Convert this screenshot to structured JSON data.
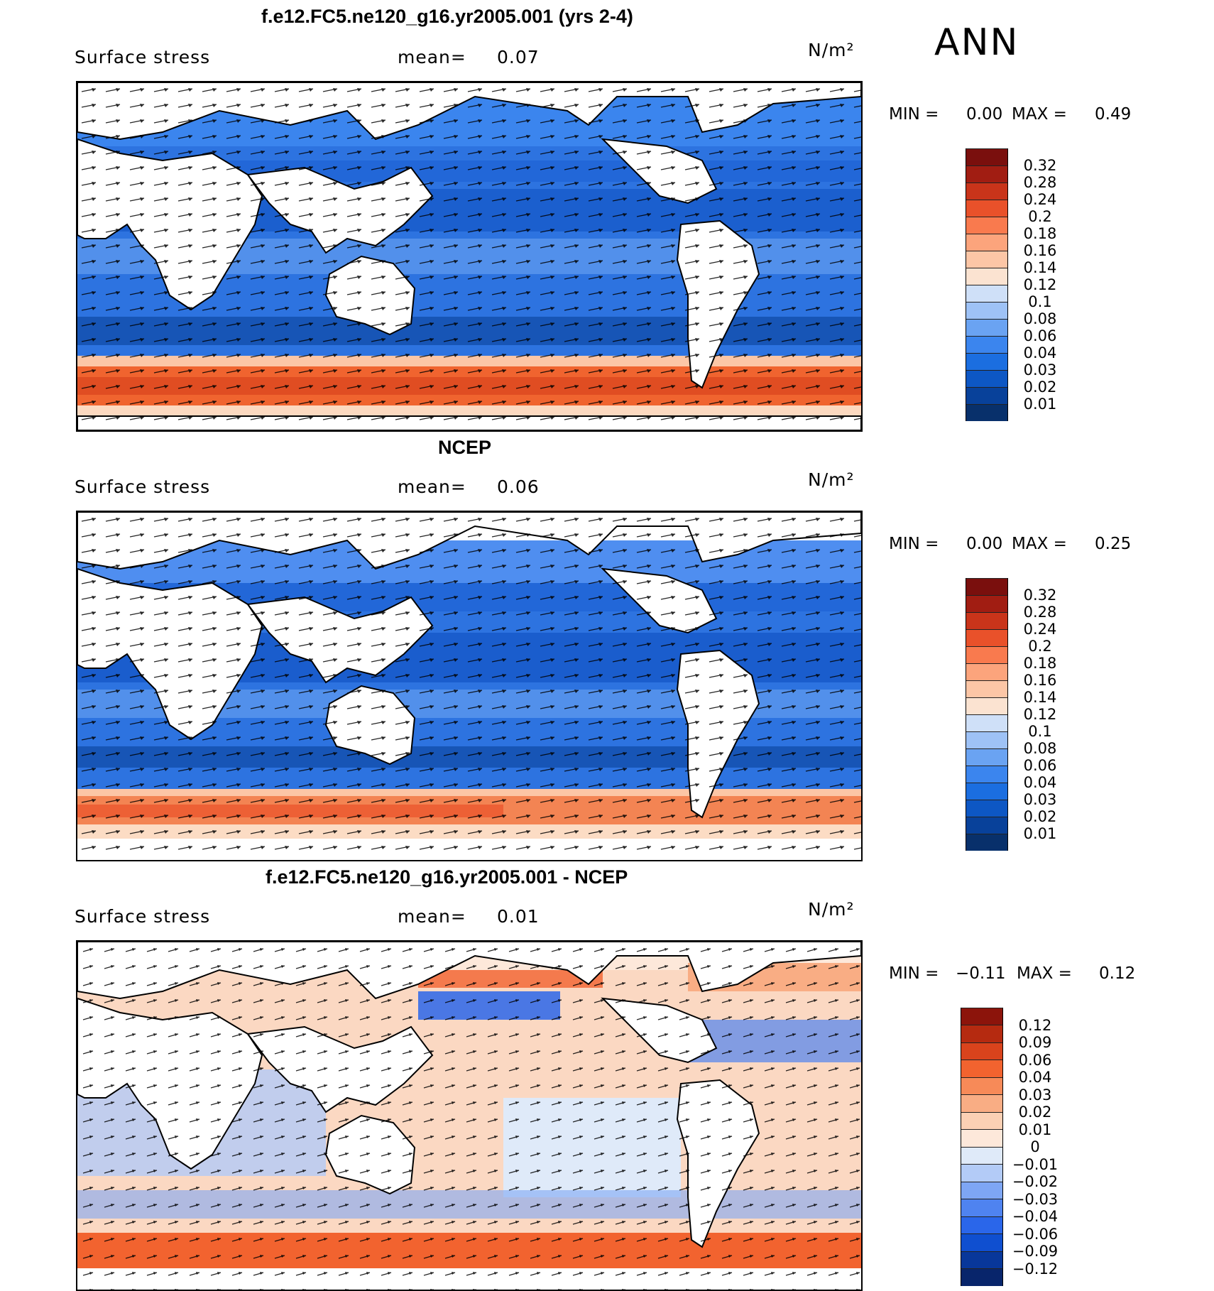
{
  "season": "ANN",
  "units": "N/m²",
  "panels": [
    {
      "title": "f.e12.FC5.ne120_g16.yr2005.001 (yrs 2-4)",
      "field": "Surface stress",
      "mean_label": "mean=",
      "mean_value": "0.07",
      "min_label": "MIN =",
      "min_value": "0.00",
      "max_label": "MAX =",
      "max_value": "0.49",
      "colorbar": {
        "colors": [
          "#08306b",
          "#08419a",
          "#0d57c4",
          "#1b6ee0",
          "#3b85ee",
          "#6aa3f2",
          "#9ec2f6",
          "#cfe0f8",
          "#fbe3d1",
          "#fcc6a6",
          "#fca47c",
          "#f97a4e",
          "#e9512a",
          "#c9341a",
          "#a11d12",
          "#7a0f0d"
        ],
        "ticks": [
          "0.01",
          "0.02",
          "0.03",
          "0.04",
          "0.06",
          "0.08",
          "0.1",
          "0.12",
          "0.14",
          "0.16",
          "0.18",
          "0.2",
          "0.24",
          "0.28",
          "0.32"
        ]
      }
    },
    {
      "title": "NCEP",
      "field": "Surface stress",
      "mean_label": "mean=",
      "mean_value": "0.06",
      "min_label": "MIN =",
      "min_value": "0.00",
      "max_label": "MAX =",
      "max_value": "0.25",
      "colorbar": {
        "colors": [
          "#08306b",
          "#08419a",
          "#0d57c4",
          "#1b6ee0",
          "#3b85ee",
          "#6aa3f2",
          "#9ec2f6",
          "#cfe0f8",
          "#fbe3d1",
          "#fcc6a6",
          "#fca47c",
          "#f97a4e",
          "#e9512a",
          "#c9341a",
          "#a11d12",
          "#7a0f0d"
        ],
        "ticks": [
          "0.01",
          "0.02",
          "0.03",
          "0.04",
          "0.06",
          "0.08",
          "0.1",
          "0.12",
          "0.14",
          "0.16",
          "0.18",
          "0.2",
          "0.24",
          "0.28",
          "0.32"
        ]
      }
    },
    {
      "title": "f.e12.FC5.ne120_g16.yr2005.001 - NCEP",
      "field": "Surface stress",
      "mean_label": "mean=",
      "mean_value": "0.01",
      "min_label": "MIN =",
      "min_value": "−0.11",
      "max_label": "MAX =",
      "max_value": "0.12",
      "colorbar": {
        "colors": [
          "#08256b",
          "#08379a",
          "#0f4fd0",
          "#2a66ea",
          "#4f83f0",
          "#7ea6f4",
          "#b3cbf7",
          "#dfeaf9",
          "#fde8da",
          "#fbd0b4",
          "#f9ad84",
          "#f78a58",
          "#f2632f",
          "#d9431c",
          "#b52a10",
          "#8c140b"
        ],
        "ticks": [
          "−0.12",
          "−0.09",
          "−0.06",
          "−0.04",
          "−0.03",
          "−0.02",
          "−0.01",
          "0",
          "0.01",
          "0.02",
          "0.03",
          "0.04",
          "0.06",
          "0.09",
          "0.12"
        ]
      }
    }
  ]
}
